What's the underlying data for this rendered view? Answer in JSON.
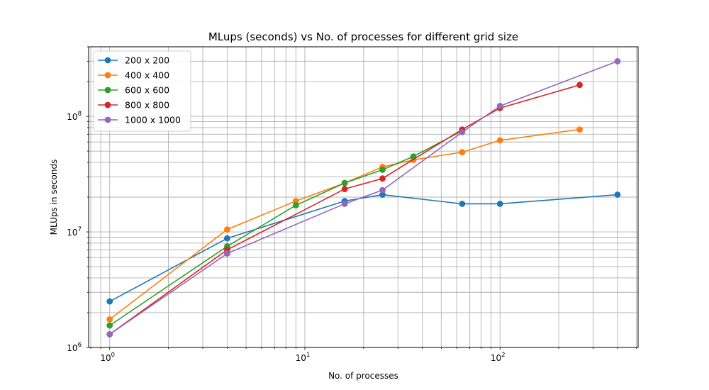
{
  "chart_data": {
    "type": "line",
    "title": "MLups (seconds) vs No. of processes for different grid size",
    "xlabel": "No. of processes",
    "ylabel": "MLUps in seconds",
    "xscale": "log",
    "yscale": "log",
    "xlim": [
      0.78,
      510
    ],
    "ylim": [
      1000000,
      400000000
    ],
    "x_ticks": [
      {
        "value": 1,
        "base": "10",
        "exp": "0"
      },
      {
        "value": 10,
        "base": "10",
        "exp": "1"
      },
      {
        "value": 100,
        "base": "10",
        "exp": "2"
      }
    ],
    "y_ticks": [
      {
        "value": 1000000,
        "base": "10",
        "exp": "6"
      },
      {
        "value": 10000000,
        "base": "10",
        "exp": "7"
      },
      {
        "value": 100000000,
        "base": "10",
        "exp": "8"
      }
    ],
    "grid": true,
    "grid_minor": true,
    "legend_position": "top-left",
    "series": [
      {
        "name": "200 x 200",
        "color": "#1f77b4",
        "x": [
          1,
          4,
          16,
          25,
          64,
          100,
          400
        ],
        "y": [
          2500000,
          8800000,
          18500000,
          21000000,
          17500000,
          17500000,
          21000000
        ]
      },
      {
        "name": "400 x 400",
        "color": "#ff7f0e",
        "x": [
          1,
          4,
          9,
          16,
          25,
          36,
          64,
          100,
          256
        ],
        "y": [
          1750000,
          10500000,
          18500000,
          26500000,
          36500000,
          42000000,
          49000000,
          62000000,
          77000000
        ]
      },
      {
        "name": "600 x 600",
        "color": "#2ca02c",
        "x": [
          1,
          4,
          9,
          16,
          25,
          36,
          64
        ],
        "y": [
          1550000,
          7500000,
          17000000,
          26500000,
          34500000,
          45000000,
          75000000
        ]
      },
      {
        "name": "800 x 800",
        "color": "#d62728",
        "x": [
          1,
          4,
          16,
          25,
          64,
          100,
          256
        ],
        "y": [
          1300000,
          7000000,
          23500000,
          29000000,
          77000000,
          118000000,
          187000000
        ]
      },
      {
        "name": "1000 x 1000",
        "color": "#9467bd",
        "x": [
          1,
          4,
          16,
          25,
          64,
          100,
          400
        ],
        "y": [
          1300000,
          6500000,
          17500000,
          23000000,
          73000000,
          123000000,
          300000000
        ]
      }
    ]
  }
}
